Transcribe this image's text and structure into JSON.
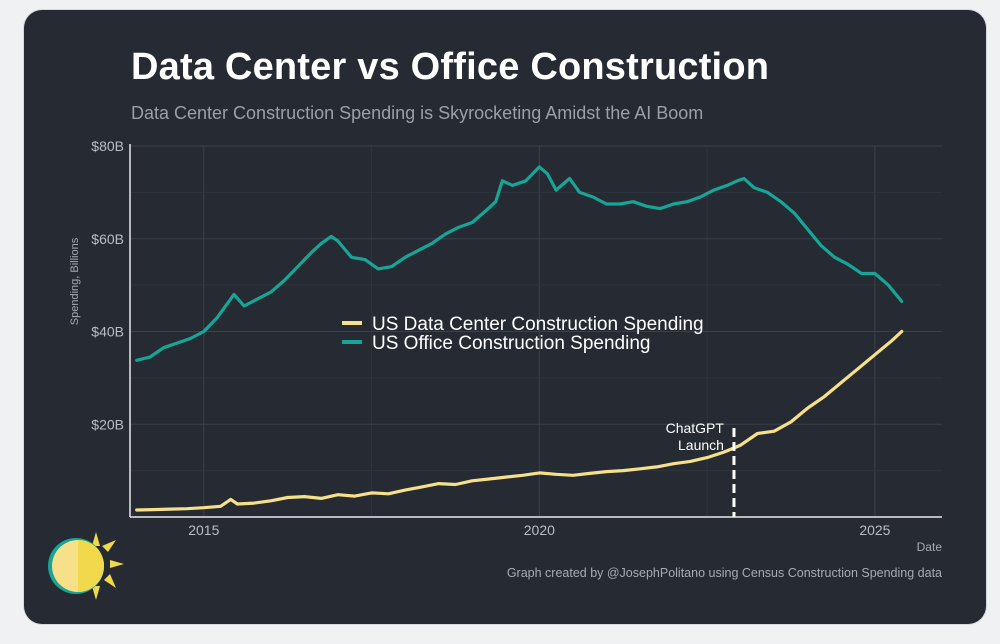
{
  "header": {
    "title": "Data Center vs Office Construction",
    "subtitle": "Data Center Construction Spending is Skyrocketing Amidst the AI Boom"
  },
  "footer": {
    "credit": "Graph created by @JosephPolitano using Census Construction Spending data"
  },
  "logo": {
    "icon": "sun-logo-icon"
  },
  "colors": {
    "background": "#252a33",
    "data_center": "#f6e08a",
    "office": "#16a596",
    "grid": "#3a404b",
    "text": "#c9cdd2"
  },
  "chart_data": {
    "type": "line",
    "title": "Data Center vs Office Construction",
    "subtitle": "Data Center Construction Spending is Skyrocketing Amidst the AI Boom",
    "xlabel": "Date",
    "ylabel": "Spending, Billions",
    "xlim": [
      2013.9,
      2026.0
    ],
    "ylim": [
      0,
      80
    ],
    "x_ticks": [
      2015,
      2020,
      2025
    ],
    "x_tick_labels": [
      "2015",
      "2020",
      "2025"
    ],
    "y_ticks": [
      20,
      40,
      60,
      80
    ],
    "y_tick_labels": [
      "$20B",
      "$40B",
      "$60B",
      "$80B"
    ],
    "grid": true,
    "legend_position": "center",
    "series": [
      {
        "name": "US Data Center Construction Spending",
        "x": [
          2014.0,
          2014.25,
          2014.5,
          2014.75,
          2015.0,
          2015.25,
          2015.4,
          2015.5,
          2015.75,
          2016.0,
          2016.25,
          2016.5,
          2016.75,
          2017.0,
          2017.25,
          2017.5,
          2017.75,
          2018.0,
          2018.25,
          2018.5,
          2018.75,
          2019.0,
          2019.25,
          2019.5,
          2019.75,
          2020.0,
          2020.25,
          2020.5,
          2020.75,
          2021.0,
          2021.25,
          2021.5,
          2021.75,
          2022.0,
          2022.25,
          2022.5,
          2022.75,
          2023.0,
          2023.25,
          2023.5,
          2023.75,
          2024.0,
          2024.25,
          2024.5,
          2024.75,
          2025.0,
          2025.25,
          2025.4
        ],
        "values": [
          1.5,
          1.6,
          1.7,
          1.8,
          2.0,
          2.3,
          3.8,
          2.8,
          3.0,
          3.5,
          4.2,
          4.4,
          4.0,
          4.8,
          4.5,
          5.2,
          5.0,
          5.8,
          6.5,
          7.2,
          7.0,
          7.8,
          8.2,
          8.6,
          9.0,
          9.5,
          9.2,
          9.0,
          9.4,
          9.8,
          10.0,
          10.4,
          10.8,
          11.5,
          12.0,
          12.8,
          14.0,
          15.5,
          18.0,
          18.5,
          20.5,
          23.5,
          26.0,
          29.0,
          32.0,
          35.0,
          38.0,
          40.0
        ]
      },
      {
        "name": "US Office Construction Spending",
        "x": [
          2014.0,
          2014.2,
          2014.4,
          2014.6,
          2014.8,
          2015.0,
          2015.2,
          2015.35,
          2015.45,
          2015.6,
          2015.8,
          2016.0,
          2016.2,
          2016.4,
          2016.6,
          2016.75,
          2016.9,
          2017.0,
          2017.2,
          2017.4,
          2017.6,
          2017.8,
          2018.0,
          2018.2,
          2018.4,
          2018.6,
          2018.8,
          2019.0,
          2019.2,
          2019.35,
          2019.45,
          2019.6,
          2019.8,
          2020.0,
          2020.12,
          2020.25,
          2020.45,
          2020.6,
          2020.8,
          2021.0,
          2021.2,
          2021.4,
          2021.6,
          2021.8,
          2022.0,
          2022.2,
          2022.4,
          2022.6,
          2022.8,
          2022.95,
          2023.05,
          2023.2,
          2023.4,
          2023.6,
          2023.8,
          2024.0,
          2024.2,
          2024.4,
          2024.6,
          2024.8,
          2025.0,
          2025.2,
          2025.4
        ],
        "values": [
          33.8,
          34.5,
          36.5,
          37.5,
          38.5,
          40.0,
          43.0,
          46.0,
          48.0,
          45.5,
          47.0,
          48.5,
          51.0,
          54.0,
          57.0,
          59.0,
          60.5,
          59.5,
          56.0,
          55.5,
          53.5,
          54.0,
          56.0,
          57.5,
          59.0,
          61.0,
          62.5,
          63.5,
          66.0,
          68.0,
          72.5,
          71.5,
          72.5,
          75.5,
          74.0,
          70.5,
          73.0,
          70.0,
          69.0,
          67.5,
          67.5,
          68.0,
          67.0,
          66.5,
          67.5,
          68.0,
          69.0,
          70.5,
          71.5,
          72.5,
          73.0,
          71.0,
          70.0,
          68.0,
          65.5,
          62.0,
          58.5,
          56.0,
          54.5,
          52.5,
          52.5,
          50.0,
          46.5
        ]
      }
    ],
    "annotations": [
      {
        "text_line1": "ChatGPT",
        "text_line2": "Launch",
        "x": 2022.9
      }
    ]
  }
}
